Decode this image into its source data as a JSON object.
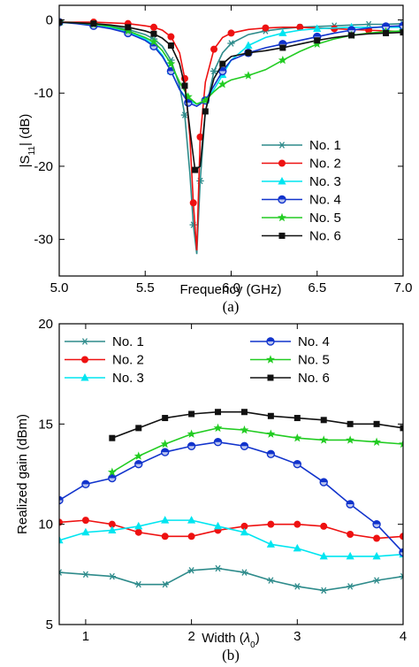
{
  "chart_data": [
    {
      "type": "line",
      "panel_label": "(a)",
      "xlabel": "Frequency (GHz)",
      "ylabel_main": "|S",
      "ylabel_sub": "11",
      "ylabel_end": "| (dB)",
      "xlim": [
        5.0,
        7.0
      ],
      "ylim": [
        -35,
        2
      ],
      "xticks": [
        5.0,
        5.5,
        6.0,
        6.5,
        7.0
      ],
      "xtick_labels": [
        "5.0",
        "5.5",
        "6.0",
        "6.5",
        "7.0"
      ],
      "yticks": [
        0,
        -10,
        -20,
        -30
      ],
      "ytick_labels": [
        "0",
        "-10",
        "-20",
        "-30"
      ],
      "legend_position": "right",
      "grid": false,
      "series": [
        {
          "name": "No. 1",
          "color": "#2e8b8b",
          "marker": "asterisk",
          "x": [
            5.0,
            5.1,
            5.2,
            5.3,
            5.4,
            5.5,
            5.55,
            5.6,
            5.65,
            5.7,
            5.73,
            5.76,
            5.78,
            5.8,
            5.82,
            5.85,
            5.9,
            5.95,
            6.0,
            6.1,
            6.2,
            6.3,
            6.4,
            6.5,
            6.6,
            6.7,
            6.8,
            6.9,
            7.0
          ],
          "y": [
            -0.3,
            -0.4,
            -0.6,
            -0.8,
            -1.3,
            -2.0,
            -2.6,
            -3.6,
            -5.5,
            -9.0,
            -13.0,
            -21.0,
            -28.0,
            -32.0,
            -22.0,
            -12.5,
            -7.0,
            -4.5,
            -3.2,
            -2.0,
            -1.5,
            -1.2,
            -1.0,
            -0.9,
            -0.8,
            -0.7,
            -0.6,
            -0.6,
            -0.5
          ]
        },
        {
          "name": "No. 2",
          "color": "#ee1111",
          "marker": "circle",
          "x": [
            5.0,
            5.1,
            5.2,
            5.3,
            5.4,
            5.5,
            5.55,
            5.6,
            5.65,
            5.7,
            5.73,
            5.76,
            5.78,
            5.8,
            5.82,
            5.85,
            5.9,
            5.95,
            6.0,
            6.1,
            6.2,
            6.3,
            6.4,
            6.5,
            6.6,
            6.7,
            6.8,
            6.9,
            7.0
          ],
          "y": [
            -0.3,
            -0.3,
            -0.3,
            -0.4,
            -0.5,
            -0.8,
            -1.0,
            -1.4,
            -2.3,
            -4.5,
            -8.0,
            -16.0,
            -25.0,
            -31.5,
            -16.0,
            -8.5,
            -4.0,
            -2.4,
            -1.8,
            -1.3,
            -1.1,
            -1.0,
            -1.0,
            -1.1,
            -1.2,
            -1.3,
            -1.4,
            -1.5,
            -1.6
          ]
        },
        {
          "name": "No. 3",
          "color": "#00e5f0",
          "marker": "triangle",
          "x": [
            5.0,
            5.1,
            5.2,
            5.3,
            5.4,
            5.5,
            5.55,
            5.6,
            5.65,
            5.7,
            5.75,
            5.8,
            5.85,
            5.9,
            5.95,
            6.0,
            6.1,
            6.2,
            6.3,
            6.4,
            6.5,
            6.6,
            6.7,
            6.8,
            6.9,
            7.0
          ],
          "y": [
            -0.3,
            -0.4,
            -0.6,
            -1.0,
            -1.6,
            -2.6,
            -3.4,
            -4.8,
            -7.0,
            -9.5,
            -11.0,
            -11.5,
            -11.0,
            -9.5,
            -7.5,
            -5.5,
            -3.5,
            -2.4,
            -1.8,
            -1.4,
            -1.2,
            -1.1,
            -1.0,
            -1.0,
            -1.0,
            -1.0
          ]
        },
        {
          "name": "No. 4",
          "color": "#1133cc",
          "marker": "circle-open",
          "x": [
            5.0,
            5.1,
            5.2,
            5.3,
            5.4,
            5.5,
            5.55,
            5.6,
            5.65,
            5.7,
            5.75,
            5.8,
            5.85,
            5.9,
            5.95,
            6.0,
            6.1,
            6.2,
            6.3,
            6.4,
            6.5,
            6.6,
            6.7,
            6.8,
            6.9,
            7.0
          ],
          "y": [
            -0.3,
            -0.5,
            -0.8,
            -1.2,
            -1.8,
            -2.8,
            -3.6,
            -5.0,
            -7.0,
            -9.5,
            -11.3,
            -11.8,
            -11.0,
            -9.0,
            -7.0,
            -5.5,
            -4.5,
            -3.8,
            -3.3,
            -2.8,
            -2.3,
            -1.8,
            -1.4,
            -1.1,
            -0.9,
            -0.8
          ]
        },
        {
          "name": "No. 5",
          "color": "#22cc22",
          "marker": "star",
          "x": [
            5.0,
            5.1,
            5.2,
            5.3,
            5.4,
            5.5,
            5.55,
            5.6,
            5.65,
            5.7,
            5.75,
            5.8,
            5.85,
            5.9,
            5.95,
            6.0,
            6.1,
            6.2,
            6.3,
            6.4,
            6.5,
            6.6,
            6.7,
            6.8,
            6.9,
            7.0
          ],
          "y": [
            -0.3,
            -0.4,
            -0.6,
            -0.9,
            -1.5,
            -2.4,
            -3.0,
            -4.2,
            -6.0,
            -8.5,
            -10.5,
            -11.5,
            -11.0,
            -9.8,
            -8.8,
            -8.2,
            -7.6,
            -6.8,
            -5.5,
            -4.3,
            -3.3,
            -2.6,
            -2.1,
            -1.8,
            -1.6,
            -1.5
          ]
        },
        {
          "name": "No. 6",
          "color": "#111111",
          "marker": "square",
          "x": [
            5.0,
            5.1,
            5.2,
            5.3,
            5.4,
            5.5,
            5.55,
            5.6,
            5.65,
            5.7,
            5.73,
            5.76,
            5.79,
            5.82,
            5.85,
            5.9,
            5.95,
            6.0,
            6.1,
            6.2,
            6.3,
            6.4,
            6.5,
            6.6,
            6.7,
            6.8,
            6.9,
            7.0
          ],
          "y": [
            -0.3,
            -0.4,
            -0.5,
            -0.7,
            -1.0,
            -1.5,
            -1.9,
            -2.5,
            -3.5,
            -6.0,
            -9.0,
            -15.0,
            -20.5,
            -20.0,
            -12.5,
            -8.0,
            -6.0,
            -5.0,
            -4.5,
            -4.2,
            -3.8,
            -3.3,
            -2.8,
            -2.4,
            -2.1,
            -1.9,
            -1.8,
            -1.7
          ]
        }
      ]
    },
    {
      "type": "line",
      "panel_label": "(b)",
      "xlabel_main": "Width (",
      "xlabel_lambda": "λ",
      "xlabel_sub": "0",
      "xlabel_end": ")",
      "ylabel": "Realized gain (dBm)",
      "xlim": [
        0.75,
        4.0
      ],
      "ylim": [
        5,
        20
      ],
      "xticks": [
        1,
        2,
        3,
        4
      ],
      "xtick_labels": [
        "1",
        "2",
        "3",
        "4"
      ],
      "yticks": [
        5,
        10,
        15,
        20
      ],
      "ytick_labels": [
        "5",
        "10",
        "15",
        "20"
      ],
      "legend_position": "top",
      "grid": false,
      "series": [
        {
          "name": "No. 1",
          "color": "#2e8b8b",
          "marker": "asterisk",
          "x": [
            0.75,
            1.0,
            1.25,
            1.5,
            1.75,
            2.0,
            2.25,
            2.5,
            2.75,
            3.0,
            3.25,
            3.5,
            3.75,
            4.0
          ],
          "y": [
            7.6,
            7.5,
            7.4,
            7.0,
            7.0,
            7.7,
            7.8,
            7.6,
            7.2,
            6.9,
            6.7,
            6.9,
            7.2,
            7.4
          ]
        },
        {
          "name": "No. 2",
          "color": "#ee1111",
          "marker": "circle",
          "x": [
            0.75,
            1.0,
            1.25,
            1.5,
            1.75,
            2.0,
            2.25,
            2.5,
            2.75,
            3.0,
            3.25,
            3.5,
            3.75,
            4.0
          ],
          "y": [
            10.1,
            10.2,
            10.0,
            9.6,
            9.4,
            9.4,
            9.7,
            9.9,
            10.0,
            10.0,
            9.9,
            9.5,
            9.3,
            9.4
          ]
        },
        {
          "name": "No. 3",
          "color": "#00e5f0",
          "marker": "triangle",
          "x": [
            0.75,
            1.0,
            1.25,
            1.5,
            1.75,
            2.0,
            2.25,
            2.5,
            2.75,
            3.0,
            3.25,
            3.5,
            3.75,
            4.0
          ],
          "y": [
            9.2,
            9.6,
            9.7,
            9.9,
            10.2,
            10.2,
            9.9,
            9.6,
            9.0,
            8.8,
            8.4,
            8.4,
            8.4,
            8.5
          ]
        },
        {
          "name": "No. 4",
          "color": "#1133cc",
          "marker": "circle-open",
          "x": [
            0.75,
            1.0,
            1.25,
            1.5,
            1.75,
            2.0,
            2.25,
            2.5,
            2.75,
            3.0,
            3.25,
            3.5,
            3.75,
            4.0
          ],
          "y": [
            11.2,
            12.0,
            12.3,
            13.0,
            13.6,
            13.9,
            14.1,
            13.9,
            13.5,
            13.0,
            12.1,
            11.0,
            10.0,
            8.6
          ]
        },
        {
          "name": "No. 5",
          "color": "#22cc22",
          "marker": "star",
          "x": [
            1.25,
            1.5,
            1.75,
            2.0,
            2.25,
            2.5,
            2.75,
            3.0,
            3.25,
            3.5,
            3.75,
            4.0
          ],
          "y": [
            12.6,
            13.4,
            14.0,
            14.5,
            14.8,
            14.7,
            14.5,
            14.3,
            14.2,
            14.2,
            14.1,
            14.0
          ]
        },
        {
          "name": "No. 6",
          "color": "#111111",
          "marker": "square",
          "x": [
            1.25,
            1.5,
            1.75,
            2.0,
            2.25,
            2.5,
            2.75,
            3.0,
            3.25,
            3.5,
            3.75,
            4.0
          ],
          "y": [
            14.3,
            14.8,
            15.3,
            15.5,
            15.6,
            15.6,
            15.4,
            15.3,
            15.2,
            15.0,
            15.0,
            14.8
          ]
        }
      ]
    }
  ]
}
